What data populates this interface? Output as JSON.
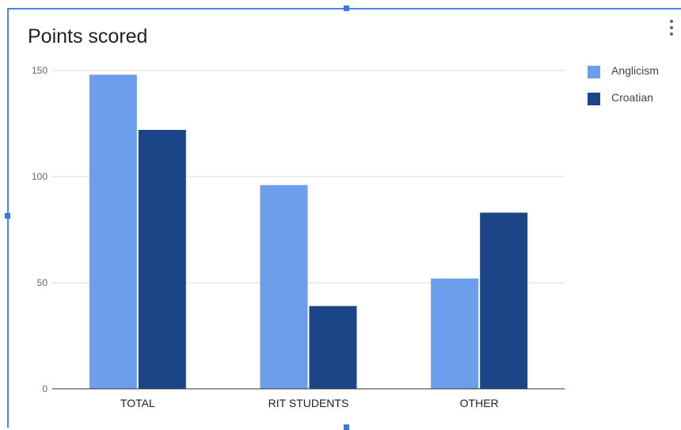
{
  "chart_data": {
    "type": "bar",
    "title": "Points scored",
    "categories": [
      "TOTAL",
      "RIT STUDENTS",
      "OTHER"
    ],
    "series": [
      {
        "name": "Anglicism",
        "color": "#6d9eeb",
        "values": [
          148,
          96,
          52
        ]
      },
      {
        "name": "Croatian",
        "color": "#1c4587",
        "values": [
          122,
          39,
          83
        ]
      }
    ],
    "ylim": [
      0,
      150
    ],
    "yticks": [
      0,
      50,
      100,
      150
    ],
    "xlabel": "",
    "ylabel": "",
    "grid": true,
    "legend_position": "right"
  },
  "ui": {
    "menu_icon": "more-vertical-icon"
  }
}
